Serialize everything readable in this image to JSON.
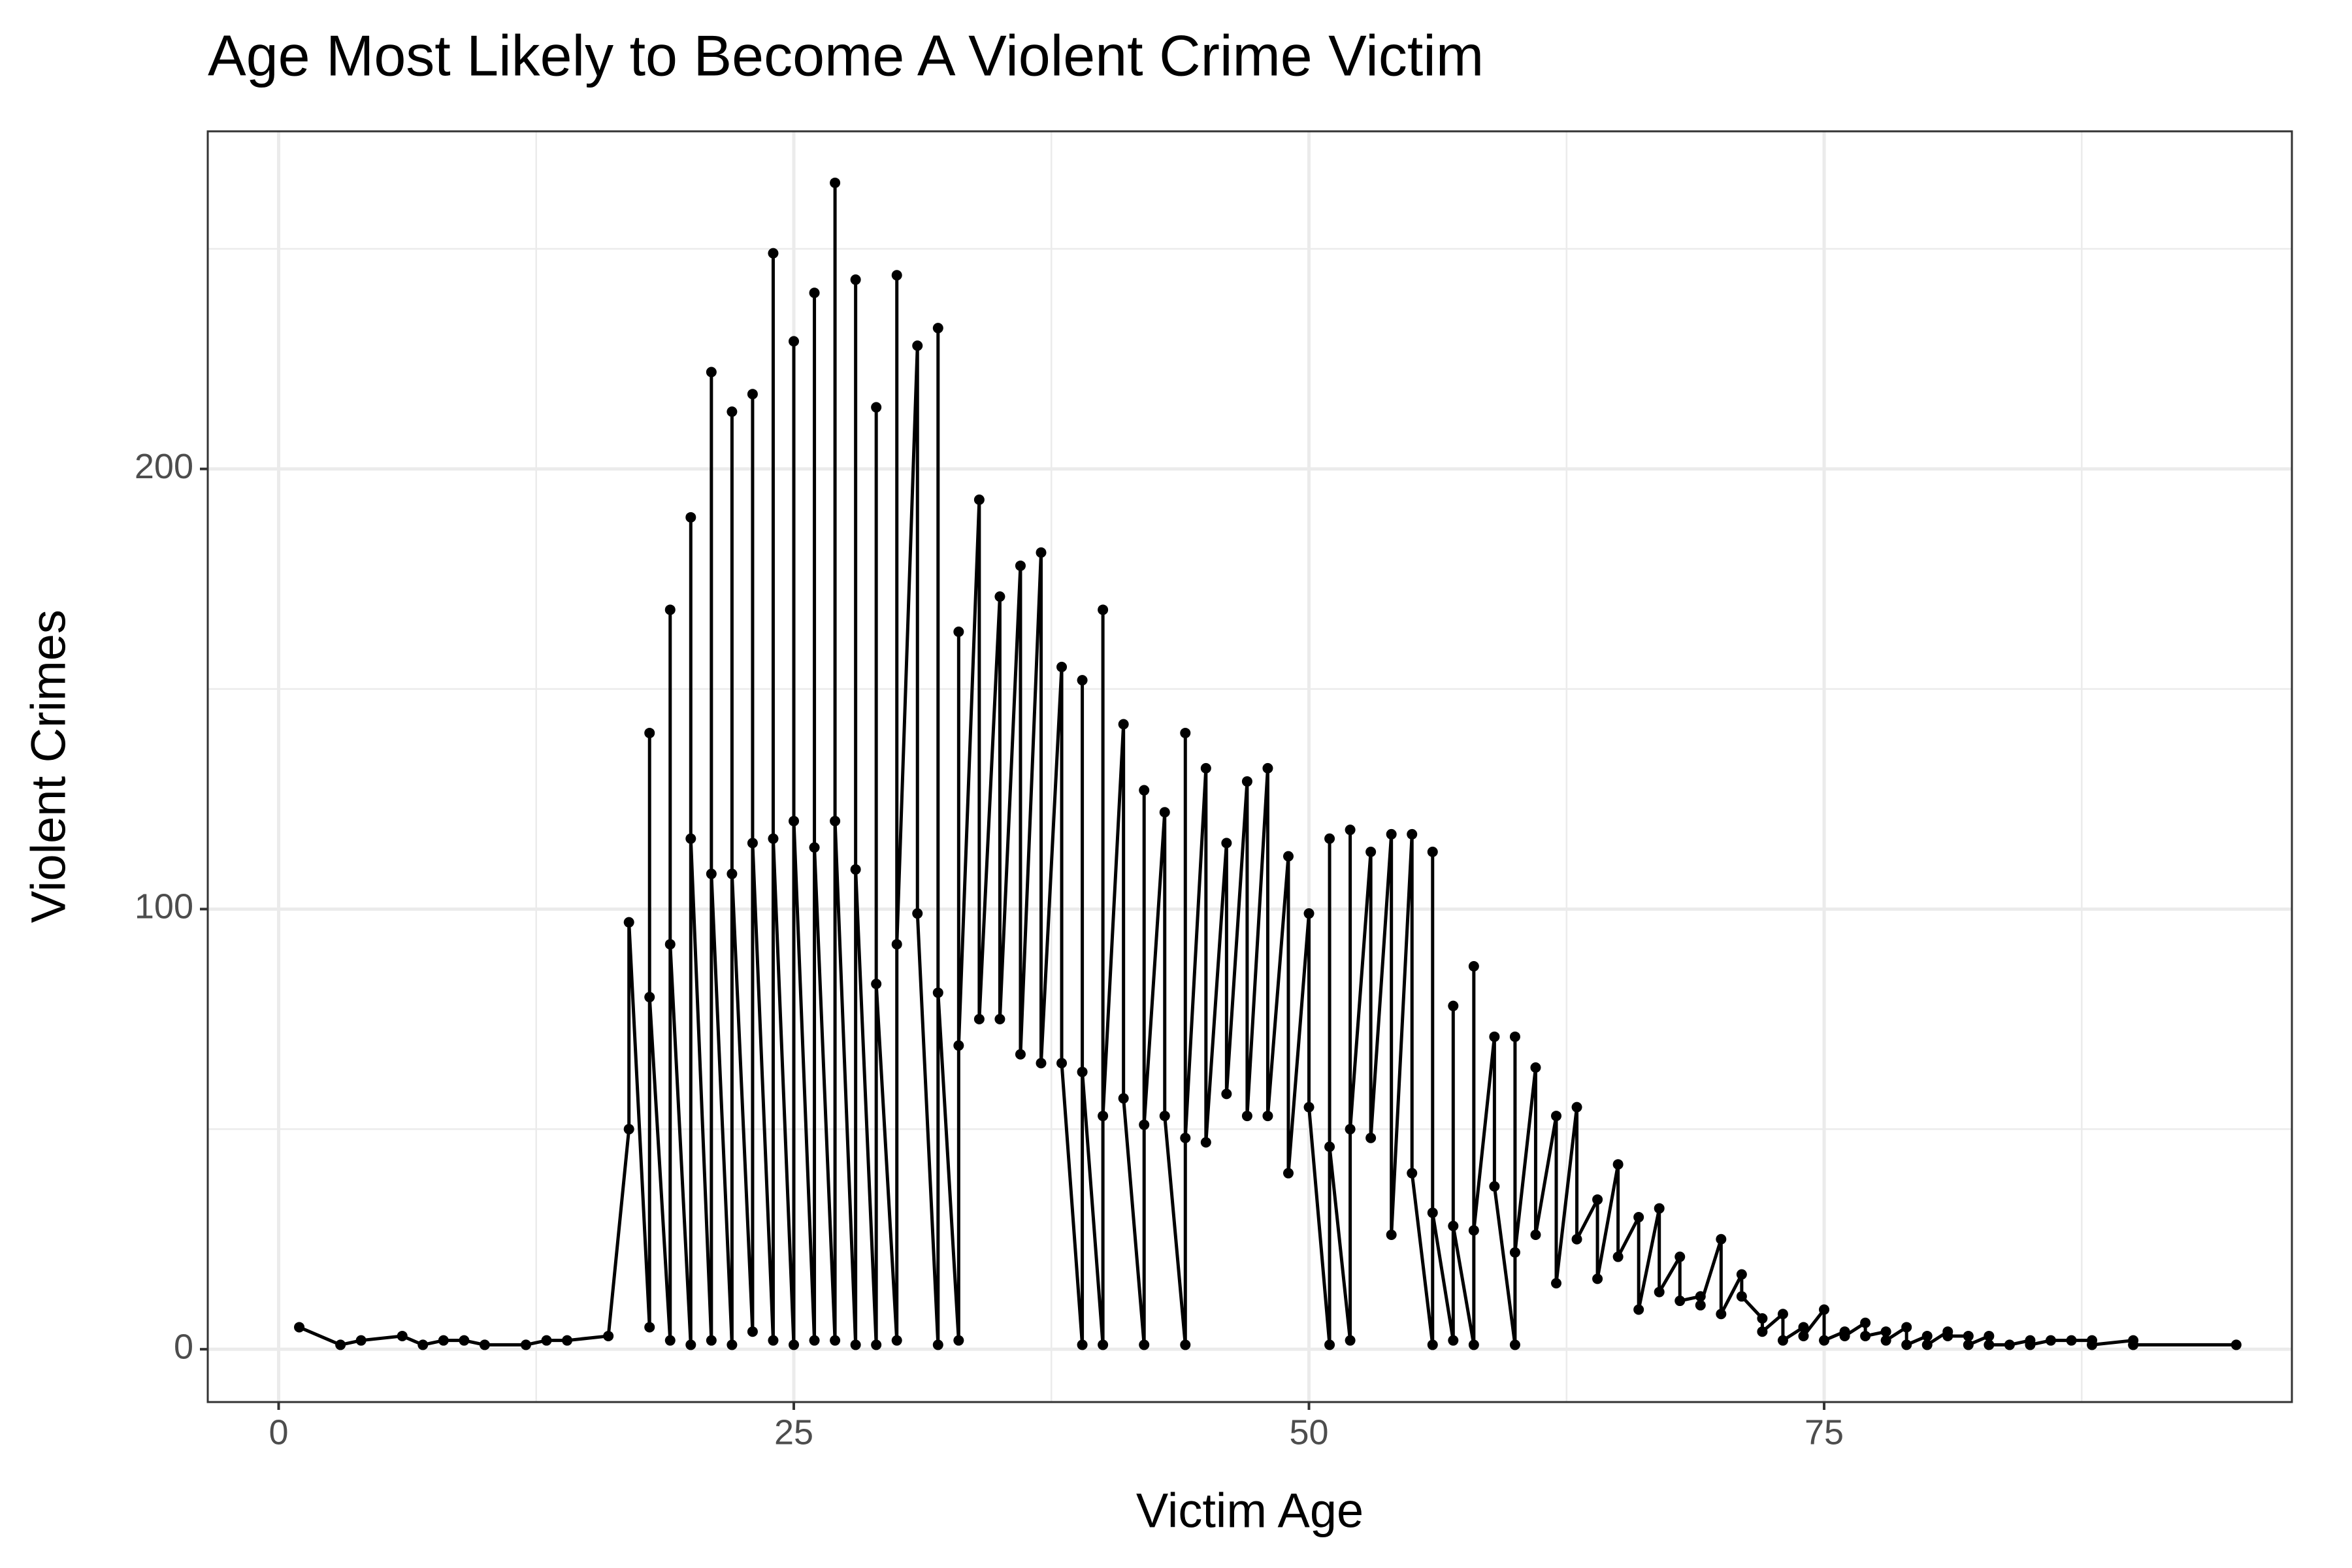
{
  "chart_data": {
    "type": "line",
    "title": "Age Most Likely to Become A Violent Crime Victim",
    "x_label": "Victim Age",
    "y_label": "Violent Crimes",
    "x": [
      1,
      3,
      4,
      6,
      7,
      8,
      9,
      10,
      12,
      13,
      14,
      16,
      17,
      17,
      18,
      18,
      18,
      19,
      19,
      19,
      20,
      20,
      20,
      21,
      21,
      21,
      22,
      22,
      22,
      23,
      23,
      23,
      24,
      24,
      24,
      25,
      25,
      25,
      26,
      26,
      26,
      27,
      27,
      27,
      28,
      28,
      28,
      29,
      29,
      29,
      30,
      30,
      30,
      31,
      31,
      32,
      32,
      32,
      33,
      33,
      33,
      34,
      34,
      35,
      35,
      36,
      36,
      37,
      37,
      38,
      38,
      39,
      39,
      39,
      40,
      40,
      40,
      41,
      41,
      42,
      42,
      42,
      43,
      43,
      44,
      44,
      44,
      45,
      45,
      46,
      46,
      47,
      47,
      48,
      48,
      49,
      49,
      50,
      50,
      51,
      51,
      51,
      52,
      52,
      52,
      53,
      53,
      54,
      54,
      55,
      55,
      56,
      56,
      56,
      57,
      57,
      57,
      58,
      58,
      58,
      59,
      59,
      60,
      60,
      60,
      61,
      61,
      62,
      62,
      63,
      63,
      64,
      64,
      65,
      65,
      66,
      66,
      67,
      67,
      68,
      68,
      69,
      69,
      70,
      70,
      71,
      71,
      72,
      72,
      73,
      73,
      74,
      74,
      75,
      75,
      76,
      76,
      77,
      77,
      78,
      78,
      79,
      79,
      80,
      80,
      81,
      81,
      82,
      82,
      83,
      83,
      84,
      85,
      85,
      86,
      87,
      88,
      88,
      90,
      90,
      95
    ],
    "values": [
      5,
      1,
      2,
      3,
      1,
      2,
      2,
      1,
      1,
      2,
      2,
      3,
      50,
      97,
      5,
      140,
      80,
      2,
      168,
      92,
      1,
      189,
      116,
      2,
      222,
      108,
      1,
      213,
      108,
      4,
      217,
      115,
      2,
      249,
      116,
      1,
      229,
      120,
      2,
      240,
      114,
      2,
      265,
      120,
      1,
      243,
      109,
      1,
      214,
      83,
      2,
      244,
      92,
      228,
      99,
      1,
      232,
      81,
      2,
      163,
      69,
      193,
      75,
      171,
      75,
      178,
      67,
      181,
      65,
      155,
      65,
      1,
      152,
      63,
      1,
      168,
      53,
      142,
      57,
      1,
      127,
      51,
      122,
      53,
      1,
      140,
      48,
      132,
      47,
      115,
      58,
      129,
      53,
      132,
      53,
      112,
      40,
      99,
      55,
      1,
      116,
      46,
      2,
      118,
      50,
      113,
      48,
      117,
      26,
      117,
      40,
      1,
      113,
      31,
      2,
      78,
      28,
      1,
      87,
      27,
      71,
      37,
      1,
      71,
      22,
      64,
      26,
      53,
      15,
      55,
      25,
      34,
      16,
      42,
      21,
      30,
      9,
      32,
      13,
      21,
      11,
      12,
      10,
      25,
      8,
      17,
      12,
      7,
      4,
      8,
      2,
      5,
      3,
      9,
      2,
      4,
      3,
      6,
      3,
      4,
      2,
      5,
      1,
      3,
      1,
      4,
      3,
      3,
      1,
      3,
      1,
      1,
      2,
      1,
      2,
      2,
      2,
      1,
      2,
      1,
      1
    ],
    "color": "#000000",
    "xlim": [
      -3.44,
      97.7
    ],
    "ylim": [
      -12,
      276.7
    ],
    "xticks": [
      0,
      25,
      50,
      75
    ],
    "yticks": [
      0,
      100,
      200
    ],
    "grid": true
  }
}
